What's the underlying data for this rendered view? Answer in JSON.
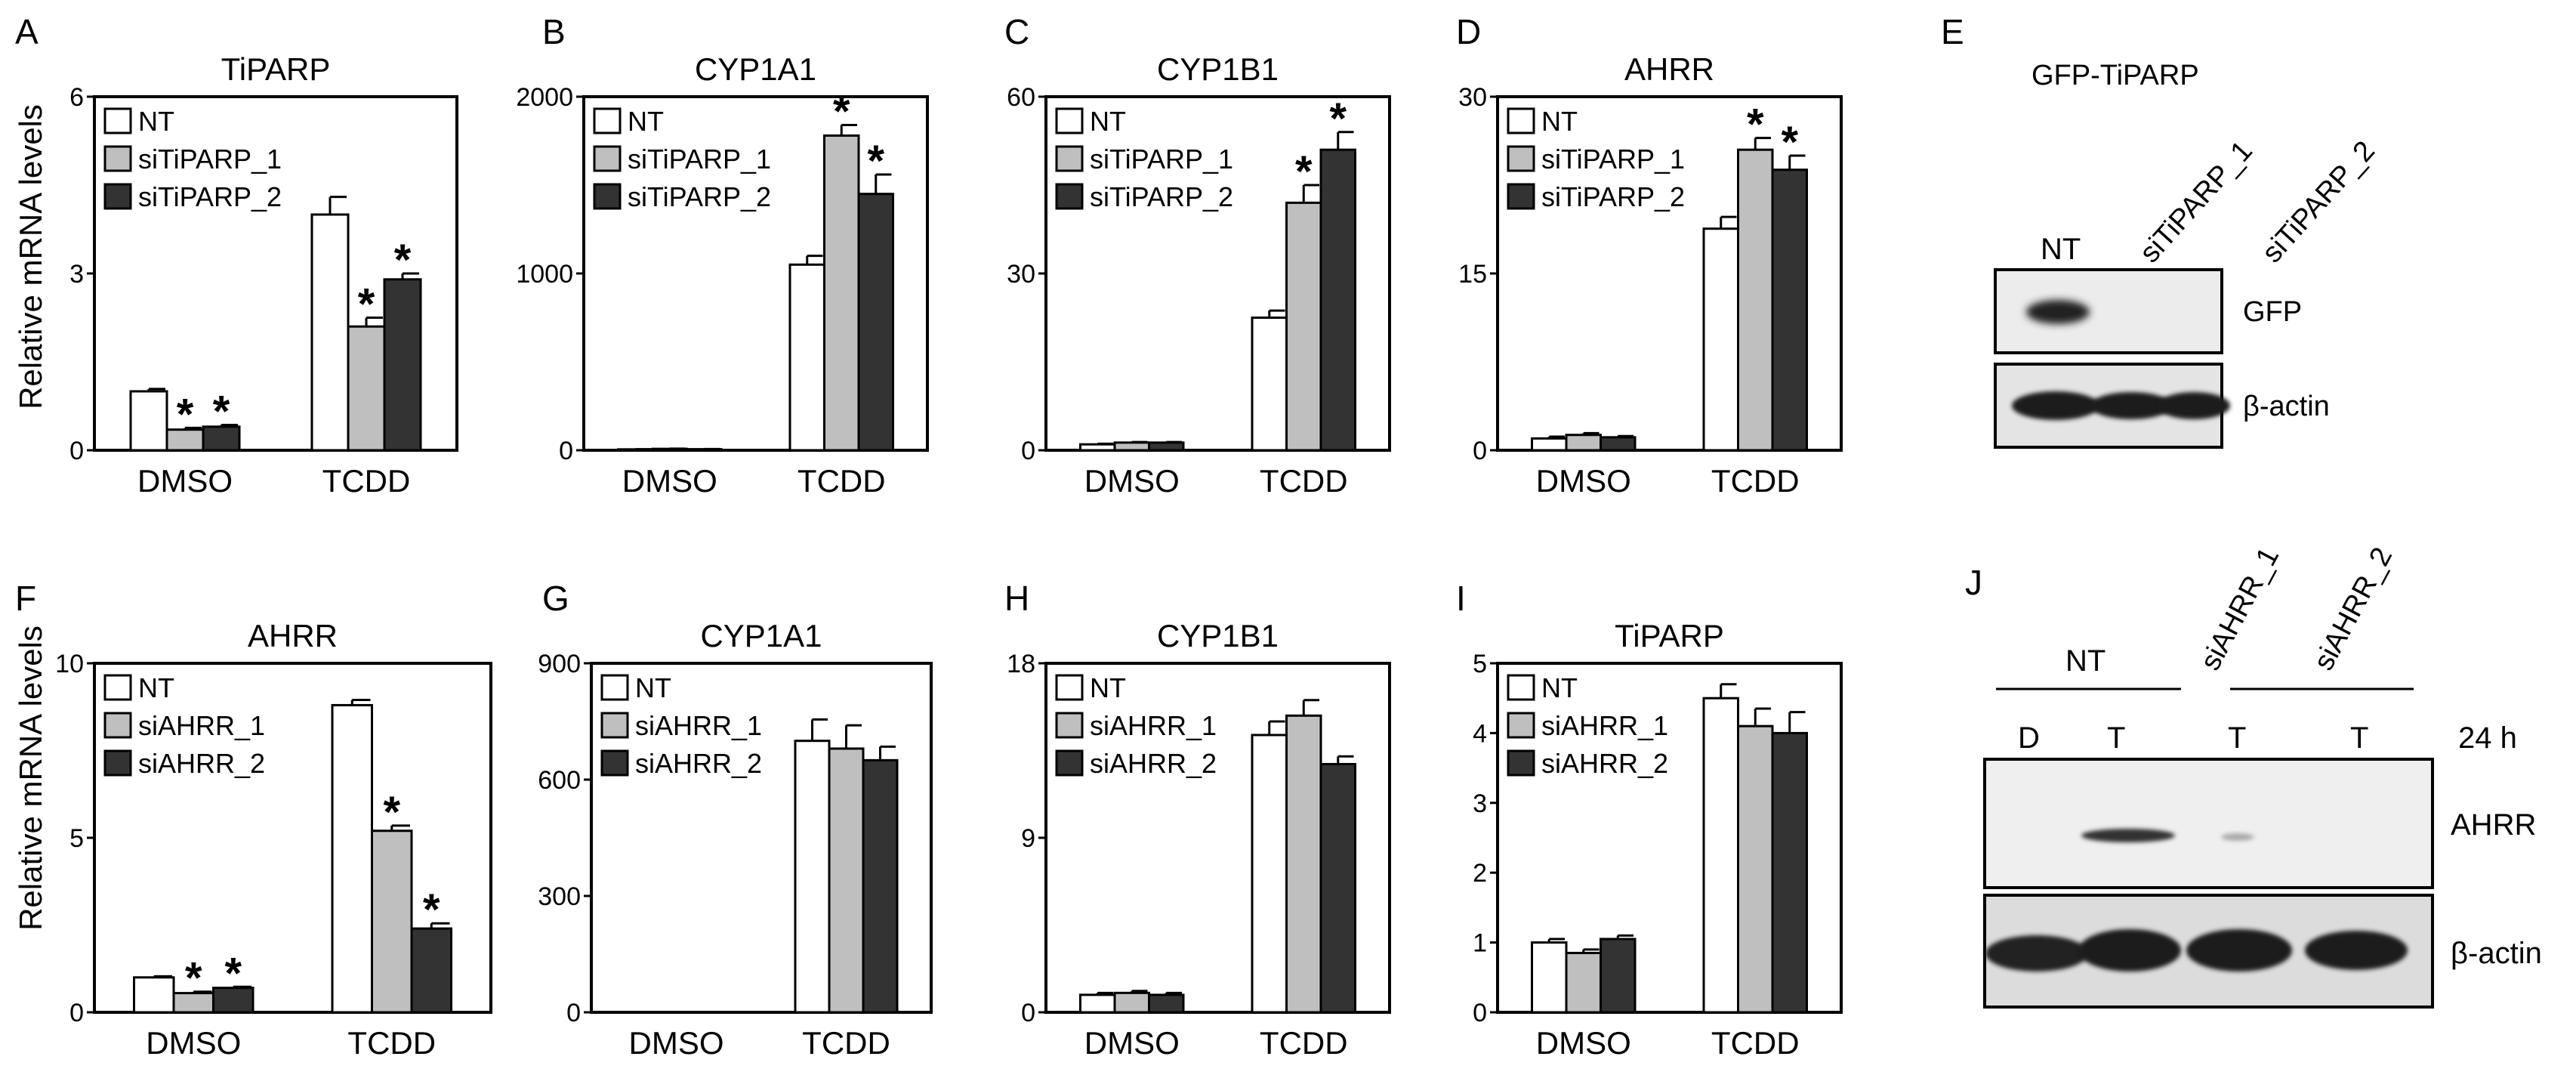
{
  "figure": {
    "legend_sets": {
      "tiparp": [
        "NT",
        "siTiPARP_1",
        "siTiPARP_2"
      ],
      "ahrr": [
        "NT",
        "siAHRR_1",
        "siAHRR_2"
      ]
    },
    "series_colors": [
      "#ffffff",
      "#bfbfbf",
      "#333333"
    ],
    "ylabel": "Relative mRNA levels",
    "significance_marker": "*"
  },
  "chart_data": [
    {
      "panel": "A",
      "type": "bar",
      "title": "TiPARP",
      "categories": [
        "DMSO",
        "TCDD"
      ],
      "ylim": [
        0,
        6
      ],
      "yticks": [
        "0",
        "3",
        "6"
      ],
      "ylabel": "Relative mRNA levels",
      "series": [
        {
          "name": "NT",
          "values": [
            1.0,
            4.0
          ],
          "errors": [
            0.04,
            0.3
          ],
          "sig": [
            false,
            false
          ]
        },
        {
          "name": "siTiPARP_1",
          "values": [
            0.35,
            2.1
          ],
          "errors": [
            0.03,
            0.15
          ],
          "sig": [
            true,
            true
          ]
        },
        {
          "name": "siTiPARP_2",
          "values": [
            0.4,
            2.9
          ],
          "errors": [
            0.03,
            0.1
          ],
          "sig": [
            true,
            true
          ]
        }
      ]
    },
    {
      "panel": "B",
      "type": "bar",
      "title": "CYP1A1",
      "categories": [
        "DMSO",
        "TCDD"
      ],
      "ylim": [
        0,
        2000
      ],
      "yticks": [
        "0",
        "1000",
        "2000"
      ],
      "series": [
        {
          "name": "NT",
          "values": [
            5,
            1050
          ],
          "errors": [
            1,
            50
          ],
          "sig": [
            false,
            false
          ]
        },
        {
          "name": "siTiPARP_1",
          "values": [
            8,
            1780
          ],
          "errors": [
            1,
            60
          ],
          "sig": [
            false,
            true
          ]
        },
        {
          "name": "siTiPARP_2",
          "values": [
            6,
            1450
          ],
          "errors": [
            1,
            110
          ],
          "sig": [
            false,
            true
          ]
        }
      ]
    },
    {
      "panel": "C",
      "type": "bar",
      "title": "CYP1B1",
      "categories": [
        "DMSO",
        "TCDD"
      ],
      "ylim": [
        0,
        60
      ],
      "yticks": [
        "0",
        "30",
        "60"
      ],
      "series": [
        {
          "name": "NT",
          "values": [
            1.0,
            22.5
          ],
          "errors": [
            0.1,
            1.2
          ],
          "sig": [
            false,
            false
          ]
        },
        {
          "name": "siTiPARP_1",
          "values": [
            1.3,
            42
          ],
          "errors": [
            0.1,
            3.0
          ],
          "sig": [
            false,
            true
          ]
        },
        {
          "name": "siTiPARP_2",
          "values": [
            1.3,
            51
          ],
          "errors": [
            0.1,
            3.0
          ],
          "sig": [
            false,
            true
          ]
        }
      ]
    },
    {
      "panel": "D",
      "type": "bar",
      "title": "AHRR",
      "categories": [
        "DMSO",
        "TCDD"
      ],
      "ylim": [
        0,
        30
      ],
      "yticks": [
        "0",
        "15",
        "30"
      ],
      "series": [
        {
          "name": "NT",
          "values": [
            1.0,
            18.8
          ],
          "errors": [
            0.15,
            1.0
          ],
          "sig": [
            false,
            false
          ]
        },
        {
          "name": "siTiPARP_1",
          "values": [
            1.3,
            25.5
          ],
          "errors": [
            0.15,
            1.0
          ],
          "sig": [
            false,
            true
          ]
        },
        {
          "name": "siTiPARP_2",
          "values": [
            1.1,
            23.8
          ],
          "errors": [
            0.1,
            1.2
          ],
          "sig": [
            false,
            true
          ]
        }
      ]
    },
    {
      "panel": "F",
      "type": "bar",
      "title": "AHRR",
      "categories": [
        "DMSO",
        "TCDD"
      ],
      "ylim": [
        0,
        10
      ],
      "yticks": [
        "0",
        "5",
        "10"
      ],
      "ylabel": "Relative mRNA levels",
      "series": [
        {
          "name": "NT",
          "values": [
            1.0,
            8.8
          ],
          "errors": [
            0.03,
            0.15
          ],
          "sig": [
            false,
            false
          ]
        },
        {
          "name": "siAHRR_1",
          "values": [
            0.55,
            5.2
          ],
          "errors": [
            0.04,
            0.15
          ],
          "sig": [
            true,
            true
          ]
        },
        {
          "name": "siAHRR_2",
          "values": [
            0.7,
            2.4
          ],
          "errors": [
            0.03,
            0.15
          ],
          "sig": [
            true,
            true
          ]
        }
      ]
    },
    {
      "panel": "G",
      "type": "bar",
      "title": "CYP1A1",
      "categories": [
        "DMSO",
        "TCDD"
      ],
      "ylim": [
        0,
        900
      ],
      "yticks": [
        "0",
        "300",
        "600",
        "900"
      ],
      "series": [
        {
          "name": "NT",
          "values": [
            0,
            700
          ],
          "errors": [
            0,
            55
          ],
          "sig": [
            false,
            false
          ]
        },
        {
          "name": "siAHRR_1",
          "values": [
            0,
            680
          ],
          "errors": [
            0,
            60
          ],
          "sig": [
            false,
            false
          ]
        },
        {
          "name": "siAHRR_2",
          "values": [
            0,
            650
          ],
          "errors": [
            0,
            35
          ],
          "sig": [
            false,
            false
          ]
        }
      ]
    },
    {
      "panel": "H",
      "type": "bar",
      "title": "CYP1B1",
      "categories": [
        "DMSO",
        "TCDD"
      ],
      "ylim": [
        0,
        18
      ],
      "yticks": [
        "0",
        "9",
        "18"
      ],
      "series": [
        {
          "name": "NT",
          "values": [
            0.9,
            14.3
          ],
          "errors": [
            0.1,
            0.7
          ],
          "sig": [
            false,
            false
          ]
        },
        {
          "name": "siAHRR_1",
          "values": [
            1.0,
            15.3
          ],
          "errors": [
            0.1,
            0.8
          ],
          "sig": [
            false,
            false
          ]
        },
        {
          "name": "siAHRR_2",
          "values": [
            0.9,
            12.8
          ],
          "errors": [
            0.1,
            0.4
          ],
          "sig": [
            false,
            false
          ]
        }
      ]
    },
    {
      "panel": "I",
      "type": "bar",
      "title": "TiPARP",
      "categories": [
        "DMSO",
        "TCDD"
      ],
      "ylim": [
        0,
        5
      ],
      "yticks": [
        "0",
        "1",
        "2",
        "3",
        "4",
        "5"
      ],
      "series": [
        {
          "name": "NT",
          "values": [
            1.0,
            4.5
          ],
          "errors": [
            0.05,
            0.2
          ],
          "sig": [
            false,
            false
          ]
        },
        {
          "name": "siAHRR_1",
          "values": [
            0.85,
            4.1
          ],
          "errors": [
            0.05,
            0.25
          ],
          "sig": [
            false,
            false
          ]
        },
        {
          "name": "siAHRR_2",
          "values": [
            1.05,
            4.0
          ],
          "errors": [
            0.05,
            0.3
          ],
          "sig": [
            false,
            false
          ]
        }
      ]
    }
  ],
  "blots": {
    "E": {
      "letter": "E",
      "title": "GFP-TiPARP",
      "lanes": [
        "NT",
        "siTiPARP_1",
        "siTiPARP_2"
      ],
      "rows": [
        "GFP",
        "β-actin"
      ]
    },
    "J": {
      "letter": "J",
      "groups": [
        "NT",
        "siAHRR_1",
        "siAHRR_2"
      ],
      "lanes": [
        "D",
        "T",
        "T",
        "T"
      ],
      "time": "24 h",
      "rows": [
        "AHRR",
        "β-actin"
      ]
    }
  }
}
